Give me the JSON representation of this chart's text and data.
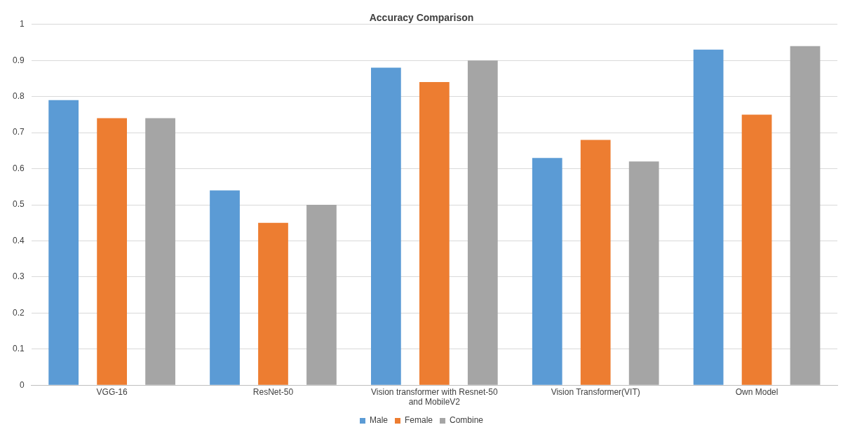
{
  "chart_data": {
    "type": "bar",
    "title": "Accuracy Comparison",
    "categories": [
      "VGG-16",
      "ResNet-50",
      "Vision transformer with Resnet-50 and MobileV2",
      "Vision Transformer(VIT)",
      "Own Model"
    ],
    "series": [
      {
        "name": "Male",
        "color": "#5b9bd5",
        "values": [
          0.79,
          0.54,
          0.88,
          0.63,
          0.93
        ]
      },
      {
        "name": "Female",
        "color": "#ed7d31",
        "values": [
          0.74,
          0.45,
          0.84,
          0.68,
          0.75
        ]
      },
      {
        "name": "Combine",
        "color": "#a5a5a5",
        "values": [
          0.74,
          0.5,
          0.9,
          0.62,
          0.94
        ]
      }
    ],
    "ylim": [
      0,
      1
    ],
    "yticks": [
      0,
      0.1,
      0.2,
      0.3,
      0.4,
      0.5,
      0.6,
      0.7,
      0.8,
      0.9,
      1
    ],
    "grid": "y",
    "legend": "bottom"
  }
}
